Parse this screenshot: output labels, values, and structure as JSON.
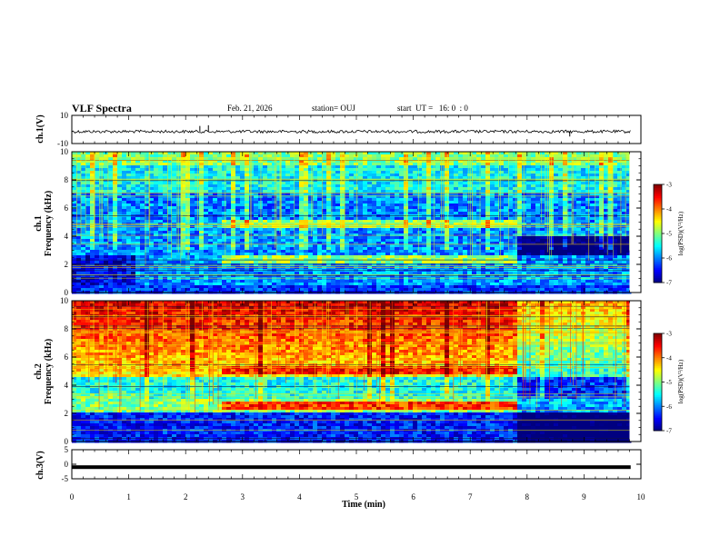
{
  "header": {
    "title": "VLF Spectra",
    "date": "Feb. 21, 2026",
    "station": "station= OUJ",
    "start": "start  UT =   16: 0  : 0"
  },
  "chart_data": [
    {
      "type": "line",
      "panel": "ch1 waveform",
      "ylabel": "ch.1(V)",
      "ylim": [
        -10,
        10
      ],
      "yticks": [
        10,
        -10
      ],
      "xlim": [
        0,
        10
      ],
      "baseline": -1.5,
      "spikes": [
        {
          "x": 2.25,
          "y": 2.5
        },
        {
          "x": 2.4,
          "y": 3.0
        },
        {
          "x": 8.75,
          "y": -5.0
        }
      ]
    },
    {
      "type": "heatmap",
      "panel": "ch1 spectrogram",
      "ylabel": "Frequency (kHz)",
      "channel_label": "ch.1",
      "ylim": [
        0,
        10
      ],
      "yticks": [
        0,
        2,
        4,
        6,
        8,
        10
      ],
      "xlim": [
        0,
        10
      ],
      "data_end_min": 9.8,
      "colorbar": {
        "label": "log(PSD)(V²/Hz)",
        "range": [
          -7,
          -3
        ],
        "ticks": [
          -3,
          -4,
          -5,
          -6,
          -7
        ]
      },
      "bands_kHz": [
        {
          "t0": 2.6,
          "t1": 7.8,
          "f0": 4.6,
          "f1": 5.2,
          "level": -4.9
        },
        {
          "t0": 2.6,
          "t1": 7.8,
          "f0": 2.1,
          "f1": 2.7,
          "level": -4.9
        }
      ]
    },
    {
      "type": "heatmap",
      "panel": "ch2 spectrogram",
      "ylabel": "Frequency (kHz)",
      "channel_label": "ch.2",
      "ylim": [
        0,
        10
      ],
      "yticks": [
        0,
        2,
        4,
        6,
        8,
        10
      ],
      "xlim": [
        0,
        10
      ],
      "data_end_min": 9.8,
      "colorbar": {
        "label": "log(PSD)(V²/Hz)",
        "range": [
          -7,
          -3
        ],
        "ticks": [
          -3,
          -4,
          -5,
          -6,
          -7
        ]
      },
      "bands_kHz": [
        {
          "t0": 2.6,
          "t1": 7.8,
          "f0": 4.8,
          "f1": 5.4,
          "level": -3.6
        },
        {
          "t0": 2.6,
          "t1": 7.8,
          "f0": 2.2,
          "f1": 2.8,
          "level": -3.7
        }
      ]
    },
    {
      "type": "line",
      "panel": "ch3 waveform",
      "ylabel": "ch.3(V)",
      "ylim": [
        -5,
        5
      ],
      "yticks": [
        5,
        0,
        -5
      ],
      "xlim": [
        0,
        10
      ],
      "baseline": -1.0
    }
  ],
  "x_axis": {
    "label": "Time (min)",
    "ticks": [
      "0",
      "1",
      "2",
      "3",
      "4",
      "5",
      "6",
      "7",
      "8",
      "9",
      "10"
    ]
  }
}
